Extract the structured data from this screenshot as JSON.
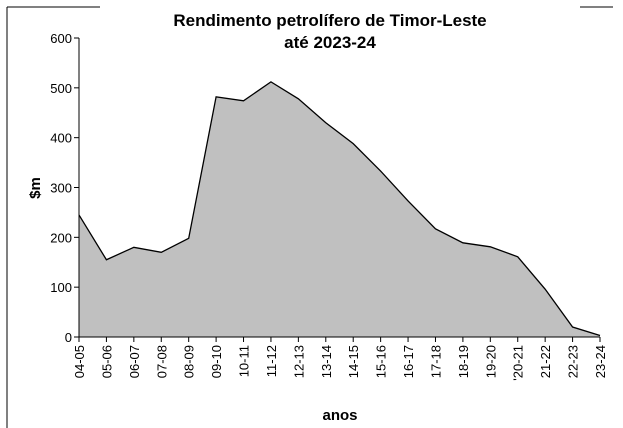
{
  "chart_data": {
    "type": "area",
    "title": [
      "Rendimento petrolífero de Timor-Leste",
      "até 2023-24"
    ],
    "xlabel": "anos",
    "ylabel": "$m",
    "categories": [
      "04-05",
      "05-06",
      "06-07",
      "07-08",
      "08-09",
      "09-10",
      "10-11",
      "11-12",
      "12-13",
      "13-14",
      "14-15",
      "15-16",
      "16-17",
      "17-18",
      "18-19",
      "19-20",
      "'20-21",
      "21-22",
      "22-23",
      "23-24"
    ],
    "values": [
      245,
      155,
      180,
      170,
      198,
      482,
      474,
      512,
      478,
      430,
      388,
      333,
      273,
      217,
      189,
      181,
      161,
      96,
      20,
      3
    ],
    "color": "#c0c0c0",
    "ylim": [
      0,
      600
    ],
    "yticks": [
      0,
      100,
      200,
      300,
      400,
      500,
      600
    ]
  }
}
